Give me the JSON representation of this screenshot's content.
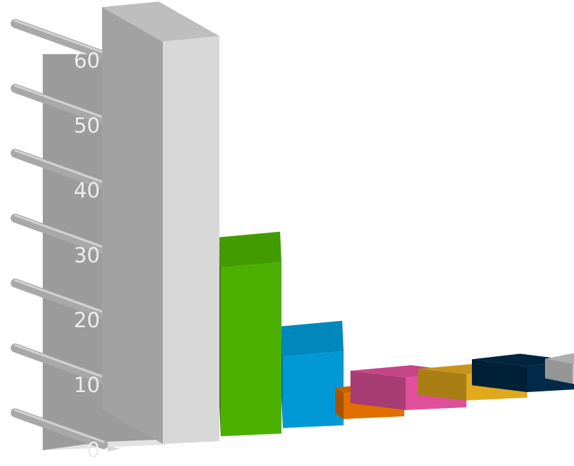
{
  "chart_data": {
    "type": "bar",
    "style": "3d",
    "categories": [
      "",
      "",
      "",
      "",
      "",
      "",
      "",
      ""
    ],
    "values": [
      62,
      26,
      11,
      4,
      5,
      4,
      4,
      3
    ],
    "colors": [
      "#d8d8d8",
      "#4bb000",
      "#0099d6",
      "#e06f00",
      "#e0509a",
      "#e0a81c",
      "#002a48",
      "#c6c6c6"
    ],
    "ylim": [
      0,
      60
    ],
    "yticks": [
      "0",
      "10",
      "20",
      "30",
      "40",
      "50",
      "60"
    ],
    "grid": false,
    "title": "",
    "xlabel": "",
    "ylabel": ""
  },
  "theme": {
    "wall": "#9b9b9b",
    "wall_top": "#b3b3b3",
    "floor": "#e3e3e3",
    "rail": "#a8a8a8",
    "tick_label": "#ececec"
  }
}
